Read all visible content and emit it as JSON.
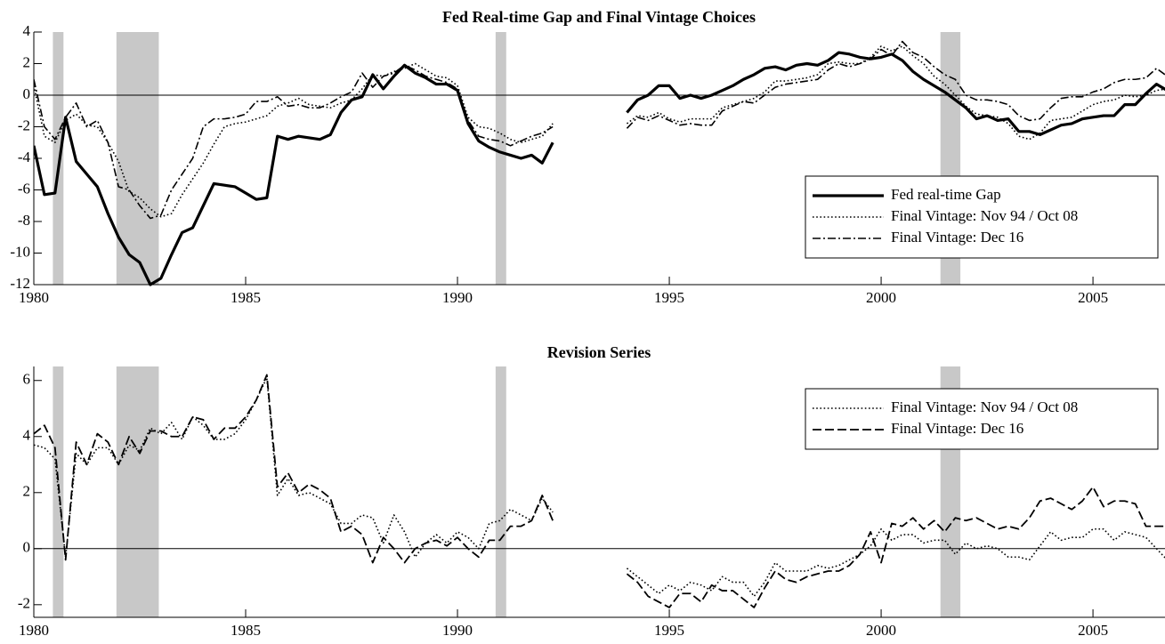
{
  "chart_data": [
    {
      "type": "line",
      "title": "Fed Real-time Gap and Final Vintage Choices",
      "xlim": [
        1980,
        2006.7
      ],
      "xticks": [
        1980,
        1985,
        1990,
        1995,
        2000,
        2005
      ],
      "ylim": [
        -12,
        4
      ],
      "yticks": [
        4,
        2,
        0,
        -2,
        -4,
        -6,
        -8,
        -10,
        -12
      ],
      "hline": 0,
      "legend": "lower right",
      "shading": [
        [
          1980.45,
          1980.7
        ],
        [
          1981.95,
          1982.95
        ],
        [
          1990.9,
          1991.15
        ],
        [
          2001.4,
          2001.87
        ]
      ],
      "shading_color": "#c8c8c8",
      "x": [
        1980,
        1980.25,
        1980.5,
        1980.75,
        1981,
        1981.25,
        1981.5,
        1981.75,
        1982,
        1982.25,
        1982.5,
        1982.75,
        1983,
        1983.25,
        1983.5,
        1983.75,
        1984,
        1984.25,
        1984.5,
        1984.75,
        1985,
        1985.25,
        1985.5,
        1985.75,
        1986,
        1986.25,
        1986.5,
        1986.75,
        1987,
        1987.25,
        1987.5,
        1987.75,
        1988,
        1988.25,
        1988.5,
        1988.75,
        1989,
        1989.25,
        1989.5,
        1989.75,
        1990,
        1990.25,
        1990.5,
        1990.75,
        1991,
        1991.25,
        1991.5,
        1991.75,
        1992,
        1992.25,
        1992.5,
        1992.75,
        1993,
        1993.25,
        1993.5,
        1993.75,
        1994,
        1994.25,
        1994.5,
        1994.75,
        1995,
        1995.25,
        1995.5,
        1995.75,
        1996,
        1996.25,
        1996.5,
        1996.75,
        1997,
        1997.25,
        1997.5,
        1997.75,
        1998,
        1998.25,
        1998.5,
        1998.75,
        1999,
        1999.25,
        1999.5,
        1999.75,
        2000,
        2000.25,
        2000.5,
        2000.75,
        2001,
        2001.25,
        2001.5,
        2001.75,
        2002,
        2002.25,
        2002.5,
        2002.75,
        2003,
        2003.25,
        2003.5,
        2003.75,
        2004,
        2004.25,
        2004.5,
        2004.75,
        2005,
        2005.25,
        2005.5,
        2005.75,
        2006,
        2006.25,
        2006.5,
        2006.75
      ],
      "series": [
        {
          "name": "Fed real-time Gap",
          "color": "#000000",
          "style": "solid",
          "width": 3.2,
          "values": [
            -3.2,
            -6.3,
            -6.2,
            -1.4,
            -4.2,
            -5.0,
            -5.8,
            -7.5,
            -9.0,
            -10.1,
            -10.6,
            -12.0,
            -11.6,
            -10.1,
            -8.7,
            -8.4,
            -7.0,
            -5.6,
            -5.7,
            -5.8,
            -6.2,
            -6.6,
            -6.5,
            -2.6,
            -2.8,
            -2.6,
            -2.7,
            -2.8,
            -2.5,
            -1.1,
            -0.3,
            -0.1,
            1.3,
            0.4,
            1.2,
            1.9,
            1.4,
            1.1,
            0.7,
            0.7,
            0.3,
            -1.8,
            -2.9,
            -3.3,
            -3.6,
            -3.8,
            -4.0,
            -3.8,
            -4.3,
            -3.0,
            null,
            null,
            null,
            null,
            null,
            null,
            -1.1,
            -0.3,
            0.0,
            0.6,
            0.6,
            -0.2,
            0.0,
            -0.2,
            0.0,
            0.3,
            0.6,
            1.0,
            1.3,
            1.7,
            1.8,
            1.6,
            1.9,
            2.0,
            1.9,
            2.2,
            2.7,
            2.6,
            2.4,
            2.3,
            2.4,
            2.6,
            2.2,
            1.5,
            1.0,
            0.6,
            0.2,
            -0.3,
            -0.8,
            -1.5,
            -1.3,
            -1.6,
            -1.5,
            -2.3,
            -2.3,
            -2.5,
            -2.2,
            -1.9,
            -1.8,
            -1.5,
            -1.4,
            -1.3,
            -1.3,
            -0.6,
            -0.6,
            0.1,
            0.7,
            0.3
          ]
        },
        {
          "name": "Final Vintage: Nov 94 / Oct 08",
          "color": "#000000",
          "style": "dotted",
          "width": 1.6,
          "values": [
            0.6,
            -2.6,
            -3.0,
            -1.6,
            -1.2,
            -1.9,
            -2.0,
            -3.0,
            -4.2,
            -6.1,
            -6.5,
            -7.2,
            -7.7,
            -7.5,
            -6.3,
            -5.3,
            -4.3,
            -3.1,
            -2.0,
            -1.8,
            -1.7,
            -1.5,
            -1.3,
            -0.7,
            -0.5,
            -0.2,
            -0.6,
            -0.7,
            -0.8,
            -0.5,
            -0.3,
            0.4,
            1.3,
            1.2,
            1.5,
            1.7,
            2.0,
            1.6,
            1.2,
            1.1,
            0.6,
            -1.4,
            -2.0,
            -2.1,
            -2.4,
            -2.8,
            -3.0,
            -2.8,
            -2.6,
            -1.8,
            null,
            null,
            null,
            null,
            null,
            null,
            -1.8,
            -1.3,
            -1.4,
            -1.1,
            -1.5,
            -1.7,
            -1.5,
            -1.5,
            -1.5,
            -0.8,
            -0.6,
            -0.4,
            -0.2,
            0.2,
            0.9,
            0.9,
            1.0,
            1.1,
            1.3,
            2.0,
            2.1,
            2.0,
            2.0,
            2.4,
            3.1,
            2.8,
            3.1,
            2.5,
            2.0,
            1.2,
            0.7,
            0.0,
            -0.7,
            -1.2,
            -1.3,
            -1.4,
            -1.8,
            -2.6,
            -2.8,
            -2.4,
            -1.6,
            -1.5,
            -1.4,
            -1.0,
            -0.6,
            -0.4,
            -0.3,
            0.0,
            -0.1,
            0.0,
            0.3,
            0.4
          ]
        },
        {
          "name": "Final Vintage: Dec 16",
          "color": "#000000",
          "style": "dashdot",
          "width": 1.6,
          "values": [
            1.0,
            -2.0,
            -2.8,
            -1.4,
            -0.5,
            -2.0,
            -1.6,
            -3.0,
            -5.8,
            -6.0,
            -7.0,
            -7.8,
            -7.6,
            -6.0,
            -5.0,
            -4.0,
            -2.0,
            -1.5,
            -1.5,
            -1.4,
            -1.2,
            -0.4,
            -0.4,
            -0.1,
            -0.7,
            -0.6,
            -0.8,
            -0.8,
            -0.5,
            -0.1,
            0.2,
            1.4,
            0.5,
            1.2,
            1.4,
            1.9,
            1.6,
            1.2,
            1.0,
            0.8,
            0.4,
            -1.6,
            -2.6,
            -2.8,
            -2.9,
            -3.2,
            -2.9,
            -2.6,
            -2.4,
            -2.0,
            null,
            null,
            null,
            null,
            null,
            null,
            -2.1,
            -1.4,
            -1.6,
            -1.3,
            -1.6,
            -1.9,
            -1.8,
            -1.9,
            -1.9,
            -1.0,
            -0.7,
            -0.4,
            -0.5,
            0.0,
            0.5,
            0.7,
            0.8,
            0.9,
            1.0,
            1.6,
            2.0,
            1.8,
            2.0,
            2.3,
            2.9,
            2.5,
            3.4,
            2.7,
            2.4,
            1.8,
            1.3,
            1.0,
            0.0,
            -0.3,
            -0.3,
            -0.4,
            -0.6,
            -1.3,
            -1.6,
            -1.5,
            -0.8,
            -0.2,
            -0.1,
            -0.1,
            0.2,
            0.4,
            0.8,
            1.0,
            1.0,
            1.1,
            1.7,
            1.2
          ]
        }
      ]
    },
    {
      "type": "line",
      "title": "Revision Series",
      "xlim": [
        1980,
        2006.7
      ],
      "xticks": [
        1980,
        1985,
        1990,
        1995,
        2000,
        2005
      ],
      "ylim": [
        -2.45,
        6.5
      ],
      "yticks": [
        6,
        4,
        2,
        0,
        -2
      ],
      "hline": 0,
      "legend": "upper right",
      "shading": [
        [
          1980.45,
          1980.7
        ],
        [
          1981.95,
          1982.95
        ],
        [
          1990.9,
          1991.15
        ],
        [
          2001.4,
          2001.87
        ]
      ],
      "shading_color": "#c8c8c8",
      "x": [
        1980,
        1980.25,
        1980.5,
        1980.75,
        1981,
        1981.25,
        1981.5,
        1981.75,
        1982,
        1982.25,
        1982.5,
        1982.75,
        1983,
        1983.25,
        1983.5,
        1983.75,
        1984,
        1984.25,
        1984.5,
        1984.75,
        1985,
        1985.25,
        1985.5,
        1985.75,
        1986,
        1986.25,
        1986.5,
        1986.75,
        1987,
        1987.25,
        1987.5,
        1987.75,
        1988,
        1988.25,
        1988.5,
        1988.75,
        1989,
        1989.25,
        1989.5,
        1989.75,
        1990,
        1990.25,
        1990.5,
        1990.75,
        1991,
        1991.25,
        1991.5,
        1991.75,
        1992,
        1992.25,
        1992.5,
        1992.75,
        1993,
        1993.25,
        1993.5,
        1993.75,
        1994,
        1994.25,
        1994.5,
        1994.75,
        1995,
        1995.25,
        1995.5,
        1995.75,
        1996,
        1996.25,
        1996.5,
        1996.75,
        1997,
        1997.25,
        1997.5,
        1997.75,
        1998,
        1998.25,
        1998.5,
        1998.75,
        1999,
        1999.25,
        1999.5,
        1999.75,
        2000,
        2000.25,
        2000.5,
        2000.75,
        2001,
        2001.25,
        2001.5,
        2001.75,
        2002,
        2002.25,
        2002.5,
        2002.75,
        2003,
        2003.25,
        2003.5,
        2003.75,
        2004,
        2004.25,
        2004.5,
        2004.75,
        2005,
        2005.25,
        2005.5,
        2005.75,
        2006,
        2006.25,
        2006.5,
        2006.75
      ],
      "series": [
        {
          "name": "Final Vintage: Nov 94 / Oct 08",
          "color": "#000000",
          "style": "dotted",
          "width": 1.6,
          "values": [
            3.7,
            3.6,
            3.2,
            -0.3,
            3.4,
            3.0,
            3.6,
            3.6,
            3.0,
            3.7,
            3.5,
            4.3,
            4.1,
            4.5,
            3.9,
            4.7,
            4.4,
            3.9,
            3.9,
            4.1,
            4.6,
            5.3,
            6.1,
            1.9,
            2.5,
            1.9,
            2.0,
            1.8,
            1.6,
            0.9,
            0.9,
            1.2,
            1.1,
            0.2,
            1.2,
            0.6,
            -0.3,
            0.2,
            0.5,
            0.2,
            0.6,
            0.4,
            0.0,
            0.9,
            1.0,
            1.4,
            1.2,
            1.0,
            1.8,
            1.3,
            null,
            null,
            null,
            null,
            null,
            null,
            -0.7,
            -1.0,
            -1.3,
            -1.6,
            -1.3,
            -1.5,
            -1.2,
            -1.3,
            -1.5,
            -1.0,
            -1.2,
            -1.2,
            -1.7,
            -1.2,
            -0.5,
            -0.8,
            -0.8,
            -0.8,
            -0.6,
            -0.7,
            -0.6,
            -0.4,
            -0.2,
            0.1,
            0.7,
            0.3,
            0.5,
            0.5,
            0.2,
            0.3,
            0.3,
            -0.2,
            0.2,
            0.0,
            0.1,
            0.0,
            -0.3,
            -0.3,
            -0.4,
            0.1,
            0.6,
            0.3,
            0.4,
            0.4,
            0.7,
            0.7,
            0.3,
            0.6,
            0.5,
            0.4,
            0.0,
            -0.4
          ]
        },
        {
          "name": "Final Vintage: Dec 16",
          "color": "#000000",
          "style": "dashed",
          "width": 1.8,
          "values": [
            4.1,
            4.4,
            3.6,
            -0.4,
            3.8,
            3.0,
            4.1,
            3.8,
            3.0,
            4.0,
            3.4,
            4.2,
            4.2,
            4.0,
            4.0,
            4.7,
            4.6,
            3.9,
            4.3,
            4.3,
            4.7,
            5.3,
            6.2,
            2.2,
            2.7,
            2.0,
            2.3,
            2.1,
            1.8,
            0.6,
            0.8,
            0.5,
            -0.5,
            0.4,
            0.0,
            -0.5,
            0.0,
            0.2,
            0.3,
            0.1,
            0.4,
            0.0,
            -0.3,
            0.3,
            0.3,
            0.8,
            0.8,
            1.0,
            1.9,
            1.0,
            null,
            null,
            null,
            null,
            null,
            null,
            -0.9,
            -1.2,
            -1.7,
            -1.9,
            -2.1,
            -1.6,
            -1.6,
            -1.9,
            -1.3,
            -1.5,
            -1.5,
            -1.8,
            -2.1,
            -1.4,
            -0.8,
            -1.1,
            -1.2,
            -1.0,
            -0.9,
            -0.8,
            -0.8,
            -0.6,
            -0.2,
            0.6,
            -0.5,
            0.9,
            0.8,
            1.1,
            0.7,
            1.0,
            0.6,
            1.1,
            1.0,
            1.1,
            0.9,
            0.7,
            0.8,
            0.7,
            1.1,
            1.7,
            1.8,
            1.6,
            1.4,
            1.7,
            2.2,
            1.5,
            1.7,
            1.7,
            1.6,
            0.8,
            0.8,
            0.8
          ]
        }
      ]
    }
  ]
}
